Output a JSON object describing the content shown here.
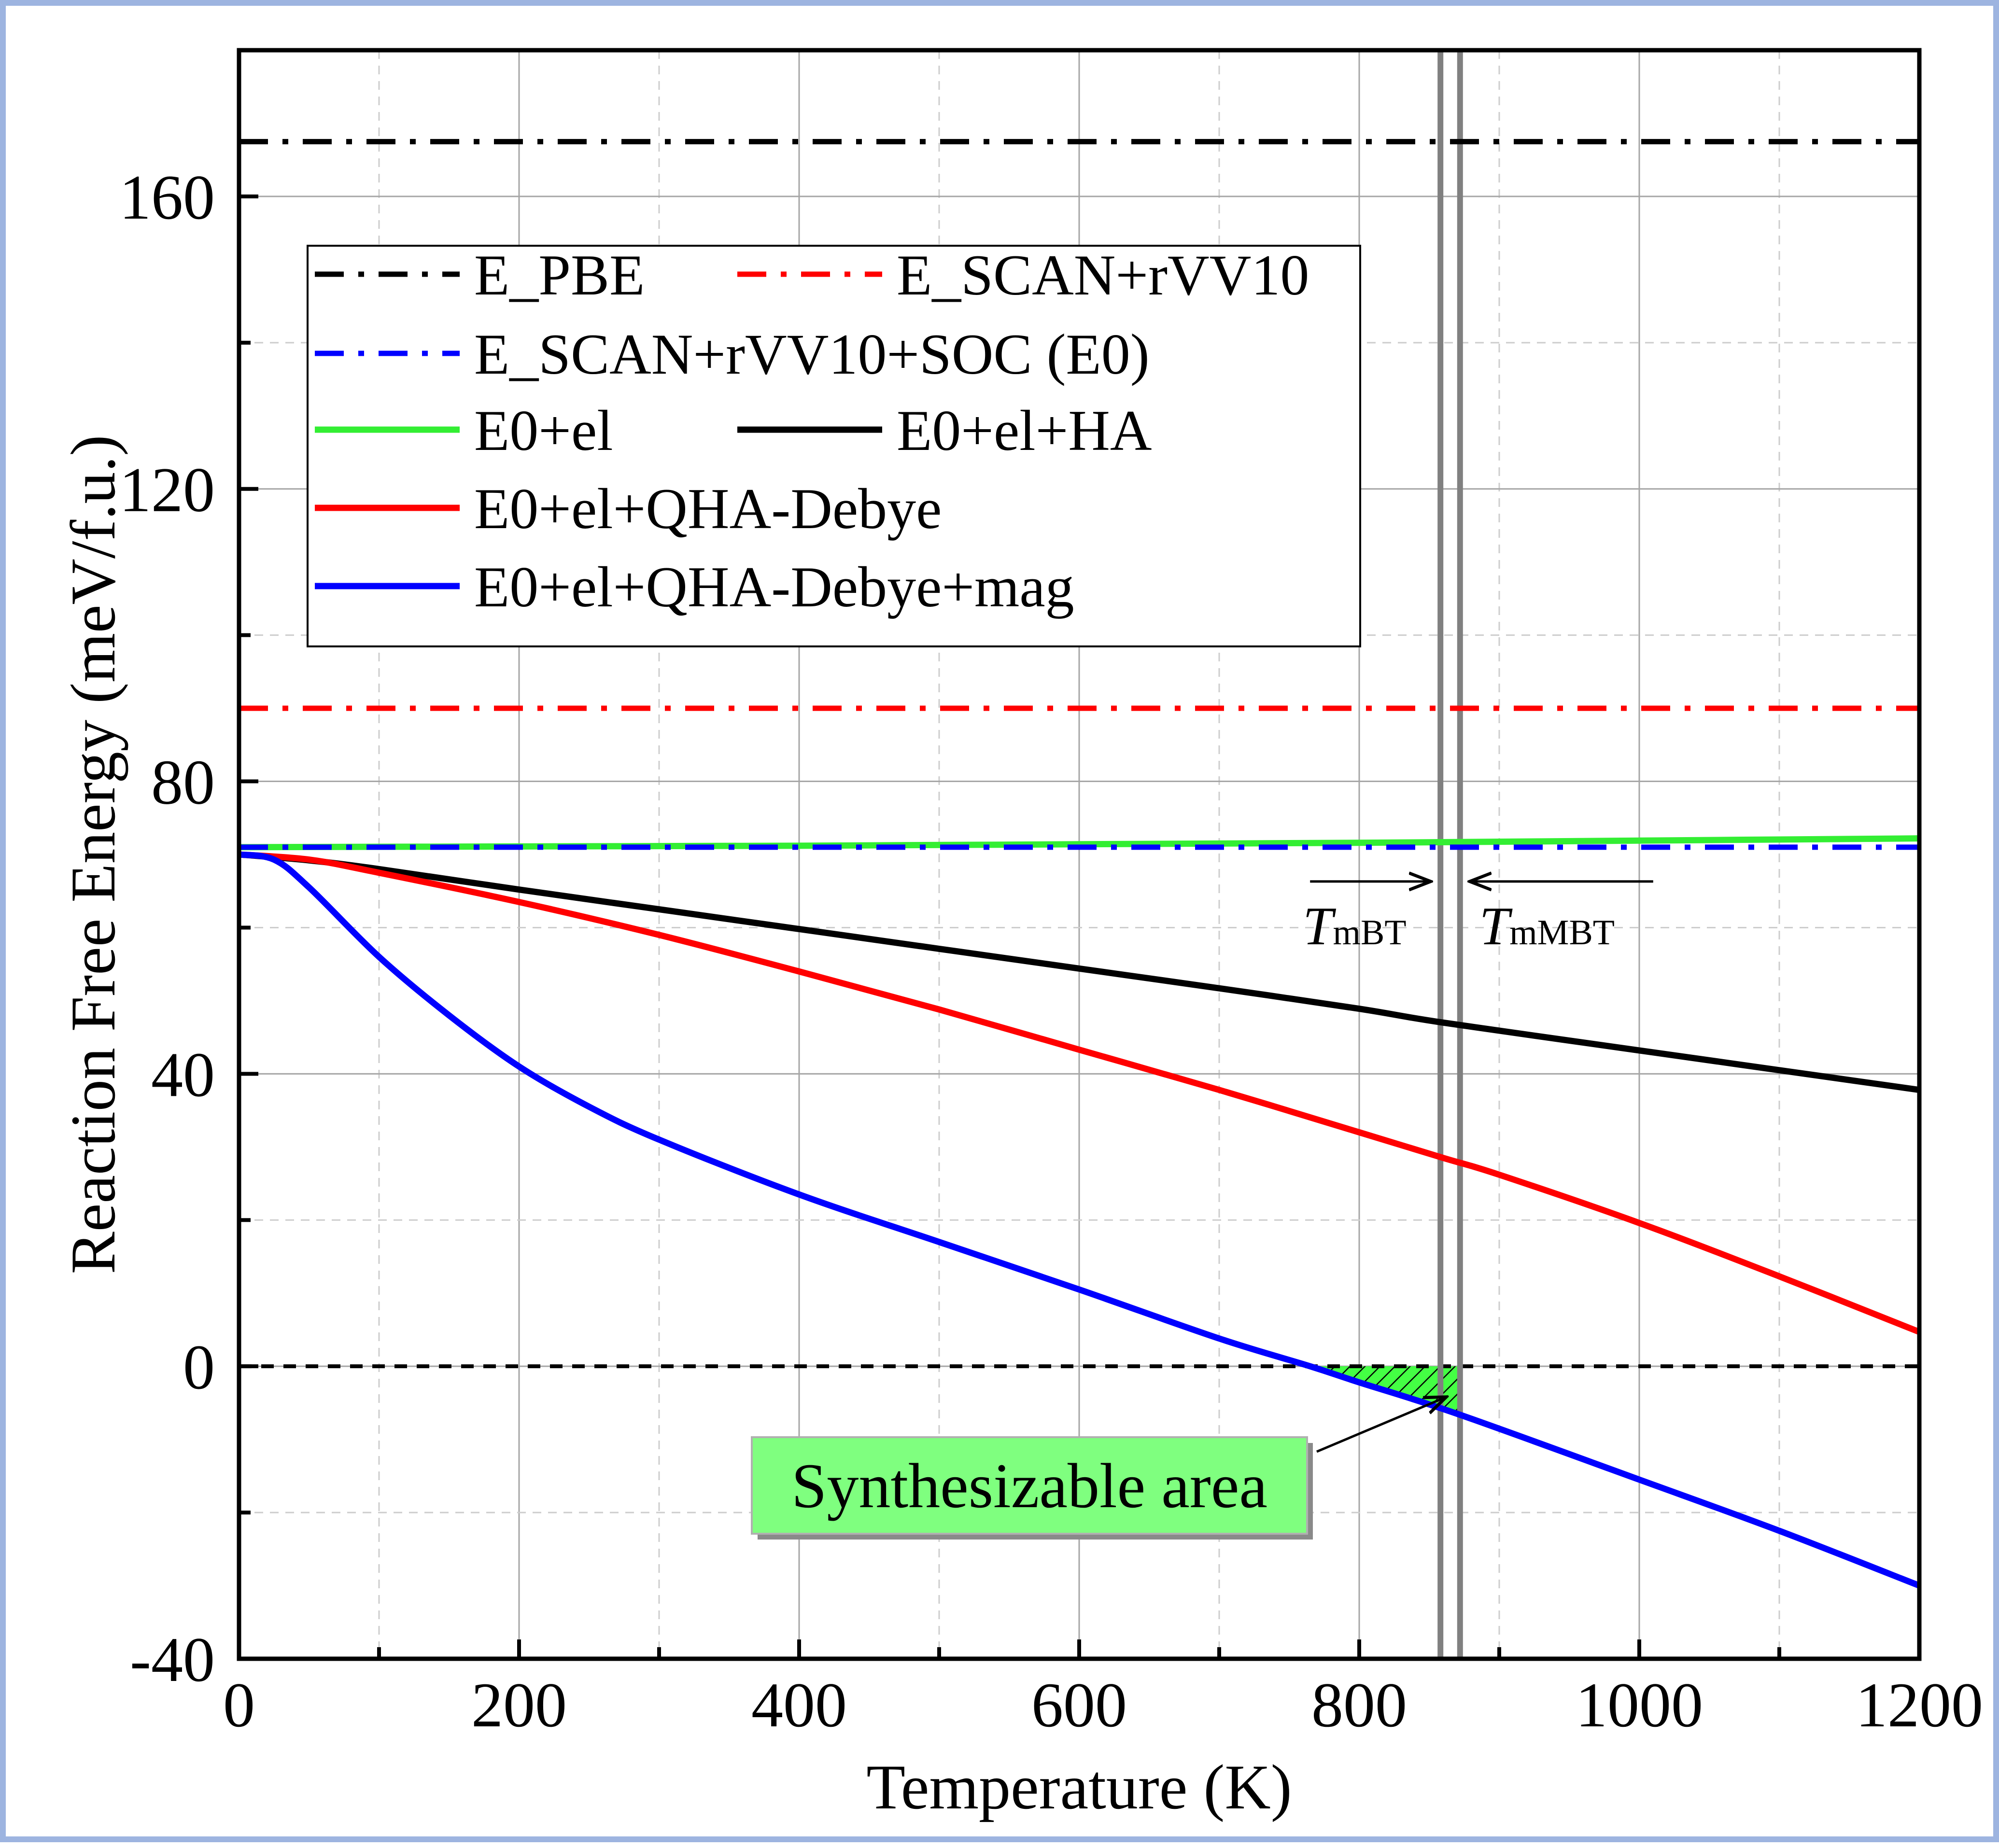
{
  "chart_data": {
    "type": "line",
    "xlabel": "Temperature (K)",
    "ylabel": "Reaction Free Energy (meV/f.u.)",
    "xlim": [
      0,
      1200
    ],
    "ylim": [
      -40,
      180
    ],
    "xticks": [
      0,
      200,
      400,
      600,
      800,
      1000,
      1200
    ],
    "xtick_labels": [
      "0",
      "200",
      "400",
      "600",
      "800",
      "1000",
      "1200"
    ],
    "yticks": [
      -40,
      0,
      40,
      80,
      120,
      160
    ],
    "ytick_labels": [
      "-40",
      "0",
      "40",
      "80",
      "120",
      "160"
    ],
    "grid": true,
    "legend_position": "upper-left",
    "series": [
      {
        "name": "E_PBE",
        "color": "#000000",
        "style": "dashdot",
        "x": [
          0,
          1200
        ],
        "y": [
          167.5,
          167.5
        ]
      },
      {
        "name": "E_SCAN+rVV10",
        "color": "#ff0000",
        "style": "dashdot",
        "x": [
          0,
          1200
        ],
        "y": [
          90,
          90
        ]
      },
      {
        "name": "E_SCAN+rVV10+SOC (E0)",
        "color": "#0000ff",
        "style": "dashdot",
        "x": [
          0,
          1200
        ],
        "y": [
          71,
          71
        ]
      },
      {
        "name": "E0+el",
        "color": "#33ee33",
        "style": "solid",
        "x": [
          0,
          200,
          400,
          600,
          800,
          1000,
          1200
        ],
        "y": [
          71,
          71.1,
          71.2,
          71.4,
          71.6,
          71.9,
          72.2
        ]
      },
      {
        "name": "E0+el+HA",
        "color": "#000000",
        "style": "solid",
        "x": [
          0,
          50,
          100,
          200,
          300,
          400,
          500,
          600,
          700,
          800,
          860,
          1000,
          1100,
          1200
        ],
        "y": [
          70,
          69.2,
          68,
          65.2,
          62.5,
          59.8,
          57.1,
          54.4,
          51.7,
          48.9,
          47,
          43.2,
          40.5,
          37.8
        ]
      },
      {
        "name": "E0+el+QHA-Debye",
        "color": "#ff0000",
        "style": "solid",
        "x": [
          0,
          50,
          100,
          200,
          300,
          400,
          500,
          600,
          700,
          800,
          860,
          900,
          1000,
          1100,
          1200
        ],
        "y": [
          70,
          69.3,
          67.5,
          63.5,
          59,
          54,
          48.8,
          43.3,
          37.8,
          32,
          28.5,
          26.2,
          19.6,
          12.3,
          4.7
        ]
      },
      {
        "name": "E0+el+QHA-Debye+mag",
        "color": "#0000ff",
        "style": "solid",
        "x": [
          0,
          25,
          50,
          100,
          150,
          200,
          250,
          300,
          400,
          500,
          600,
          700,
          765,
          800,
          870,
          1000,
          1100,
          1200
        ],
        "y": [
          70,
          69.3,
          65.5,
          56,
          48,
          41,
          35.5,
          31,
          23.5,
          17,
          10.5,
          3.8,
          0,
          -2.2,
          -6.5,
          -15.5,
          -22.5,
          -30
        ]
      }
    ],
    "reference_lines": [
      {
        "name": "zero",
        "axis": "y",
        "value": 0,
        "color": "#000000",
        "style": "dashed"
      },
      {
        "name": "T_mBT",
        "axis": "x",
        "value": 858,
        "color": "#808080",
        "style": "solid"
      },
      {
        "name": "T_mMBT",
        "axis": "x",
        "value": 872,
        "color": "#808080",
        "style": "solid"
      }
    ],
    "annotations": {
      "tmbt": {
        "italic": "T",
        "sub": "mBT",
        "x": 858,
        "y": 64
      },
      "tmmbt": {
        "italic": "T",
        "sub": "mMBT",
        "x": 872,
        "y": 64
      },
      "hatched_region": {
        "x_start": 765,
        "x_end": 872,
        "y_top": 0
      },
      "label_box": {
        "text": "Synthesizable area",
        "fill": "#7fff7f",
        "x": 845,
        "y": -3
      }
    }
  }
}
